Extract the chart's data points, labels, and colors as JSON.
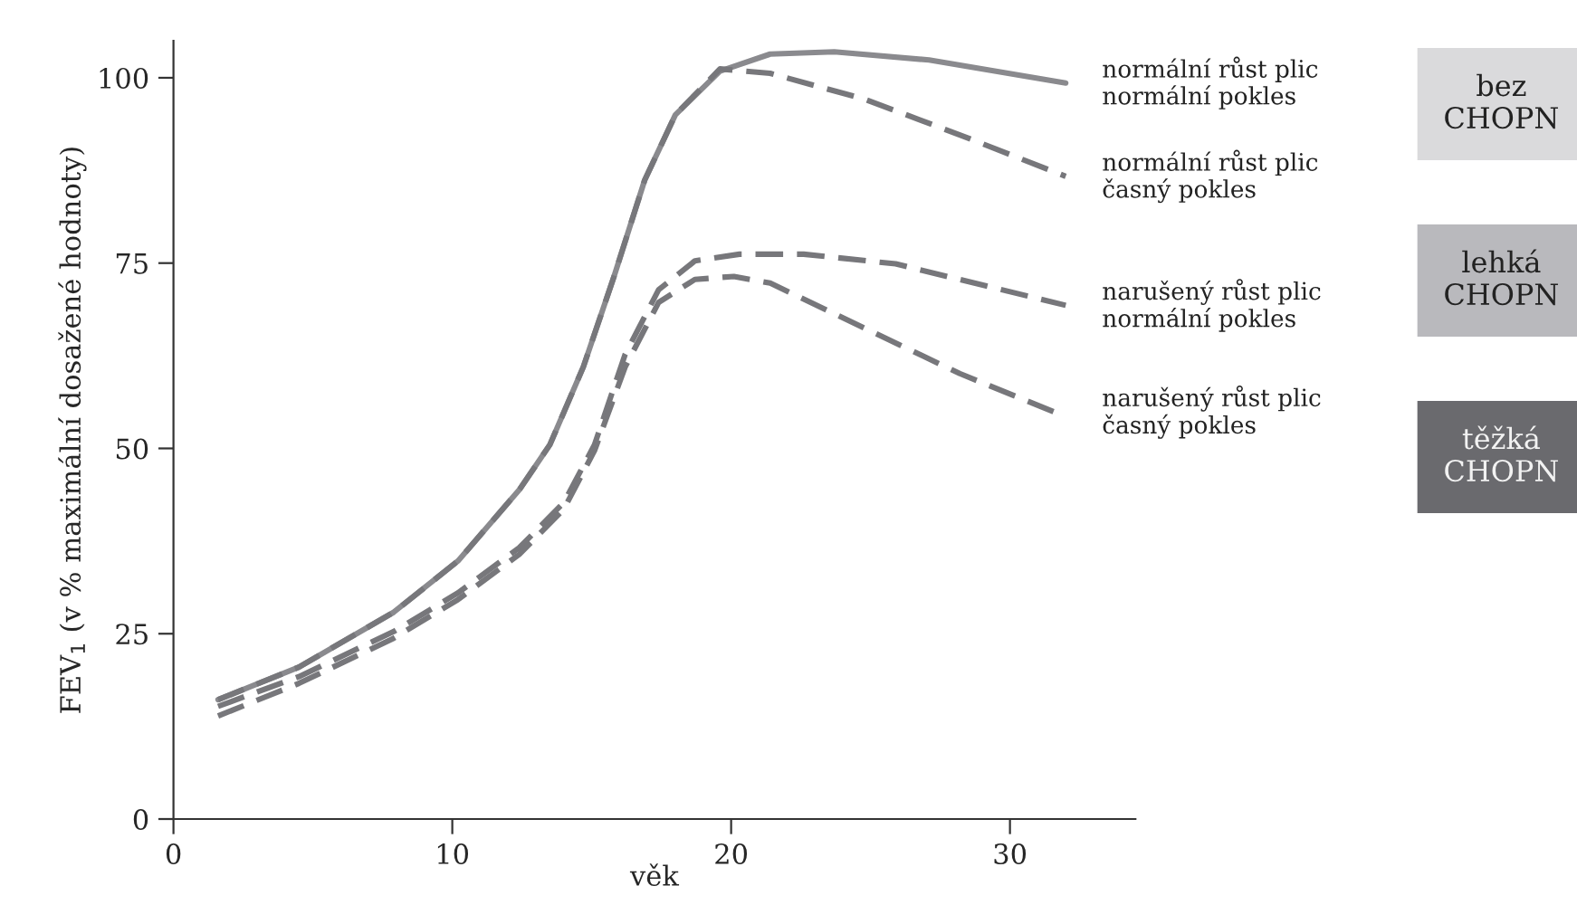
{
  "chart_data": {
    "type": "line",
    "xlabel": "věk",
    "ylabel": "FEV$_{1}$ (v % maximální dosažené hodnoty)",
    "xlim": [
      0,
      34.5
    ],
    "ylim": [
      0,
      105
    ],
    "xticks": [
      0,
      10,
      20,
      30
    ],
    "yticks": [
      0,
      25,
      50,
      75,
      100
    ],
    "grid": false,
    "legend": false,
    "series": [
      {
        "name": "normální růst plic\nnormální pokles",
        "color": "#8a8a8e",
        "line_style": "solid",
        "x": [
          1.6,
          4.5,
          7.9,
          10.2,
          12.4,
          13.5,
          14.7,
          15.8,
          16.9,
          18.0,
          19.6,
          21.4,
          23.7,
          27.1,
          32.0
        ],
        "values": [
          16.1,
          20.5,
          27.9,
          34.8,
          44.4,
          50.5,
          61,
          73.2,
          86.2,
          95,
          100.9,
          103.2,
          103.5,
          102.4,
          99.3
        ]
      },
      {
        "name": "normální růst plic\nčasný pokles",
        "color": "#77777b",
        "line_style": "dashed",
        "x": [
          1.6,
          4.5,
          7.9,
          10.2,
          12.4,
          13.5,
          14.7,
          15.8,
          16.9,
          18.0,
          19.6,
          21.4,
          24.8,
          28.2,
          32.0
        ],
        "values": [
          16.1,
          20.5,
          27.9,
          34.8,
          44.4,
          50.5,
          61,
          73.2,
          86.2,
          95,
          101.2,
          100.6,
          97.1,
          92.3,
          86.7
        ]
      },
      {
        "name": "narušený růst plic\nnormální pokles",
        "color": "#77777b",
        "line_style": "dashed",
        "x": [
          1.6,
          4.5,
          7.9,
          10.2,
          12.4,
          14.0,
          15.1,
          16.2,
          17.4,
          18.7,
          20.3,
          22.6,
          25.9,
          32.0
        ],
        "values": [
          15.2,
          19.2,
          25.3,
          30.5,
          36.6,
          42.7,
          50.5,
          62.7,
          71.4,
          75.3,
          76.2,
          76.2,
          74.9,
          69.3
        ]
      },
      {
        "name": "narušený růst plic\nčasný pokles",
        "color": "#77777b",
        "line_style": "dashed",
        "x": [
          1.6,
          4.5,
          7.9,
          10.2,
          12.4,
          14.0,
          15.1,
          16.2,
          17.4,
          18.7,
          20.1,
          21.4,
          24.8,
          28.2,
          31.6
        ],
        "values": [
          13.9,
          18.3,
          24.4,
          29.6,
          35.7,
          41.8,
          49.7,
          61.0,
          69.7,
          72.8,
          73.2,
          72.3,
          66.2,
          60.1,
          54.9
        ]
      }
    ],
    "annotations": [
      "bez\nCHOPN",
      "lehká\nCHOPN",
      "těžká\nCHOPN"
    ]
  }
}
